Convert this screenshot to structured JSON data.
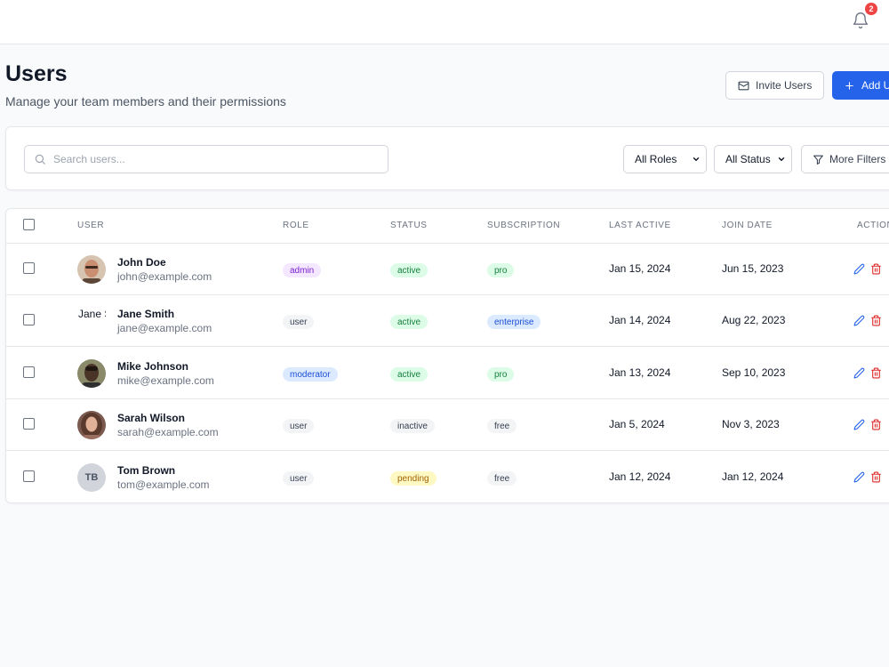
{
  "header": {
    "notification_count": "2",
    "bell_icon": "bell-icon"
  },
  "page": {
    "title": "Users",
    "subtitle": "Manage your team members and their permissions",
    "invite_label": "Invite Users",
    "add_label": "Add Users"
  },
  "filters": {
    "search_placeholder": "Search users...",
    "role_value": "All Roles",
    "status_value": "All Status",
    "more_label": "More Filters"
  },
  "table": {
    "columns": [
      "USER",
      "ROLE",
      "STATUS",
      "SUBSCRIPTION",
      "LAST ACTIVE",
      "JOIN DATE",
      "ACTIONS"
    ],
    "rows": [
      {
        "name": "John Doe",
        "email": "john@example.com",
        "role": "admin",
        "status": "active",
        "subscription": "pro",
        "last_active": "Jan 15, 2024",
        "join_date": "Jun 15, 2023"
      },
      {
        "name": "Jane Smith",
        "email": "jane@example.com",
        "avatar_alt": "Jane Smith",
        "role": "user",
        "status": "active",
        "subscription": "enterprise",
        "last_active": "Jan 14, 2024",
        "join_date": "Aug 22, 2023"
      },
      {
        "name": "Mike Johnson",
        "email": "mike@example.com",
        "role": "moderator",
        "status": "active",
        "subscription": "pro",
        "last_active": "Jan 13, 2024",
        "join_date": "Sep 10, 2023"
      },
      {
        "name": "Sarah Wilson",
        "email": "sarah@example.com",
        "role": "user",
        "status": "inactive",
        "subscription": "free",
        "last_active": "Jan 5, 2024",
        "join_date": "Nov 3, 2023"
      },
      {
        "name": "Tom Brown",
        "email": "tom@example.com",
        "initials": "TB",
        "role": "user",
        "status": "pending",
        "subscription": "free",
        "last_active": "Jan 12, 2024",
        "join_date": "Jan 12, 2024"
      }
    ]
  },
  "colors": {
    "primary": "#2563eb",
    "danger": "#dc2626",
    "badge_red": "#ef4444",
    "background": "#f9fafb"
  }
}
